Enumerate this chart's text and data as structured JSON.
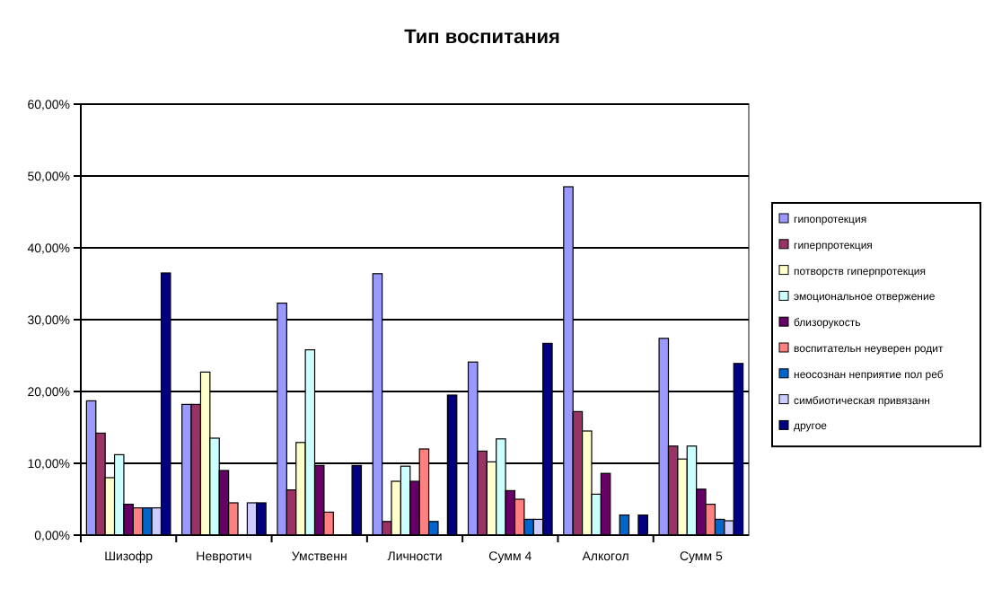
{
  "chart_data": {
    "type": "bar",
    "title": "Тип воспитания",
    "categories": [
      "Шизофр",
      "Невротич",
      "Умственн",
      "Личности",
      "Сумм 4",
      "Алкогол",
      "Сумм 5"
    ],
    "series": [
      {
        "name": "гипопротекция",
        "color": "#9999ff",
        "values": [
          18.7,
          18.2,
          32.3,
          36.4,
          24.1,
          48.5,
          27.4
        ]
      },
      {
        "name": "гиперпротекция",
        "color": "#993366",
        "values": [
          14.2,
          18.2,
          6.3,
          1.9,
          11.7,
          17.2,
          12.4
        ]
      },
      {
        "name": "потворств гиперпротекция",
        "color": "#ffffcc",
        "values": [
          8.0,
          22.7,
          12.9,
          7.5,
          10.2,
          14.5,
          10.6
        ]
      },
      {
        "name": "эмоциональное отвержение",
        "color": "#ccffff",
        "values": [
          11.2,
          13.5,
          25.8,
          9.6,
          13.4,
          5.7,
          12.4
        ]
      },
      {
        "name": "близорукость",
        "color": "#660066",
        "values": [
          4.3,
          9.0,
          9.7,
          7.5,
          6.2,
          8.6,
          6.4
        ]
      },
      {
        "name": "воспитательн неуверен родит",
        "color": "#ff8080",
        "values": [
          3.8,
          4.5,
          3.2,
          12.0,
          5.0,
          0,
          4.3
        ]
      },
      {
        "name": "неосознан неприятие пол реб",
        "color": "#0066cc",
        "values": [
          3.8,
          0,
          0,
          1.9,
          2.2,
          2.8,
          2.2
        ]
      },
      {
        "name": "симбиотическая привязанн",
        "color": "#ccccff",
        "values": [
          3.8,
          4.5,
          0,
          0,
          2.2,
          0,
          2.0
        ]
      },
      {
        "name": "другое",
        "color": "#000080",
        "values": [
          36.5,
          4.5,
          9.7,
          19.5,
          26.7,
          2.8,
          23.9
        ]
      }
    ],
    "ylim": [
      0,
      60
    ],
    "yticks": [
      {
        "value": 0,
        "label": "0,00%"
      },
      {
        "value": 10,
        "label": "10,00%"
      },
      {
        "value": 20,
        "label": "20,00%"
      },
      {
        "value": 30,
        "label": "30,00%"
      },
      {
        "value": 40,
        "label": "40,00%"
      },
      {
        "value": 50,
        "label": "50,00%"
      },
      {
        "value": 60,
        "label": "60,00%"
      }
    ],
    "grid": "y",
    "legend": "right"
  }
}
